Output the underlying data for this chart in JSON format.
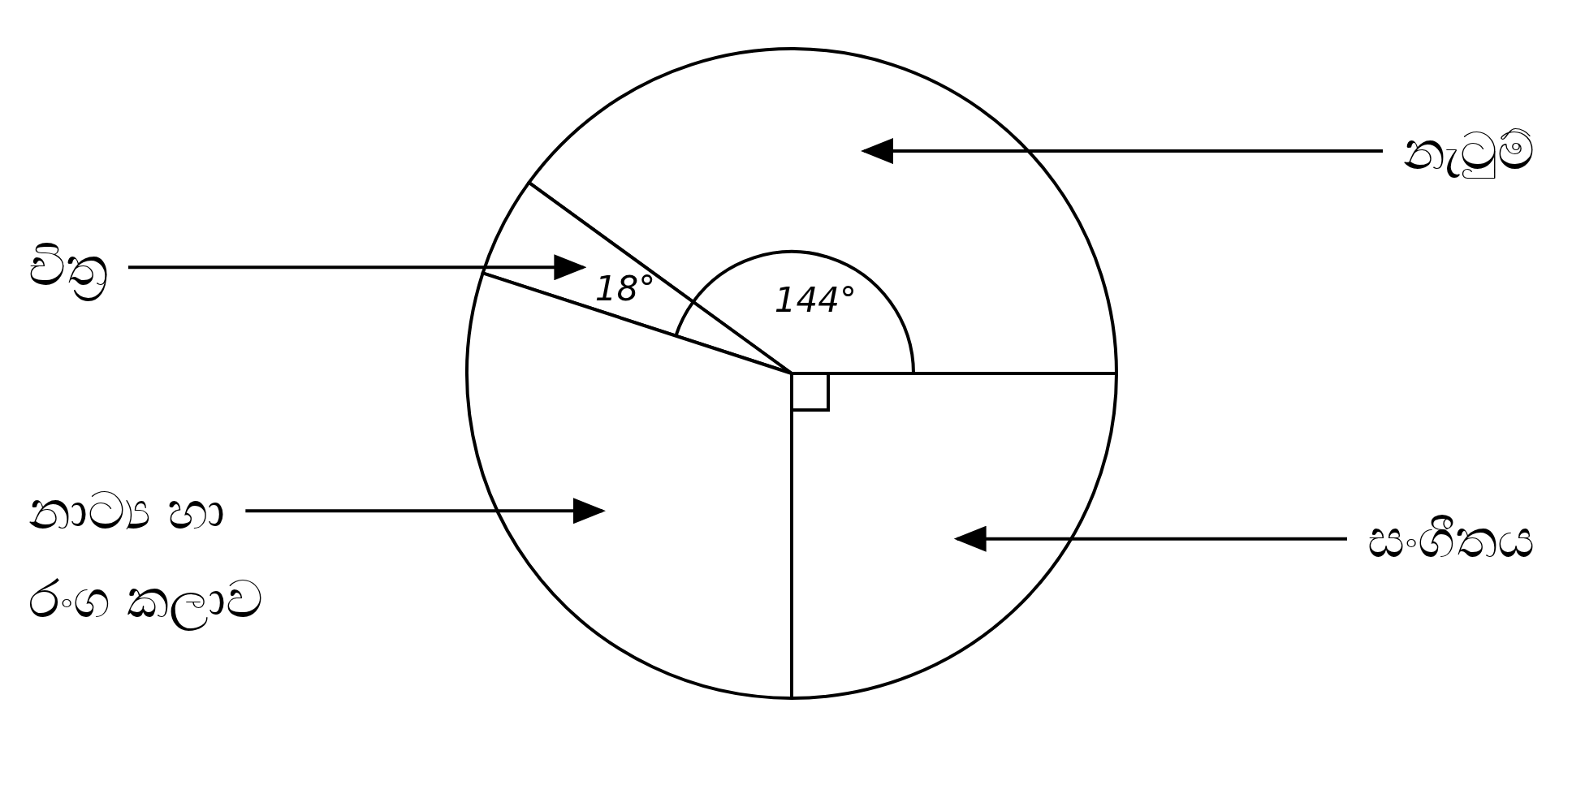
{
  "chart_data": {
    "type": "pie",
    "categories": [
      "නැටුම්",
      "චිත්‍ර",
      "නාට්‍ය හා රංග කලාව",
      "සංගීතය"
    ],
    "values": [
      144,
      18,
      108,
      90
    ],
    "colors": [
      "#ffffff",
      "#ffffff",
      "#ffffff",
      "#ffffff"
    ],
    "value_labels": [
      "144°",
      "18°",
      null,
      null
    ]
  }
}
